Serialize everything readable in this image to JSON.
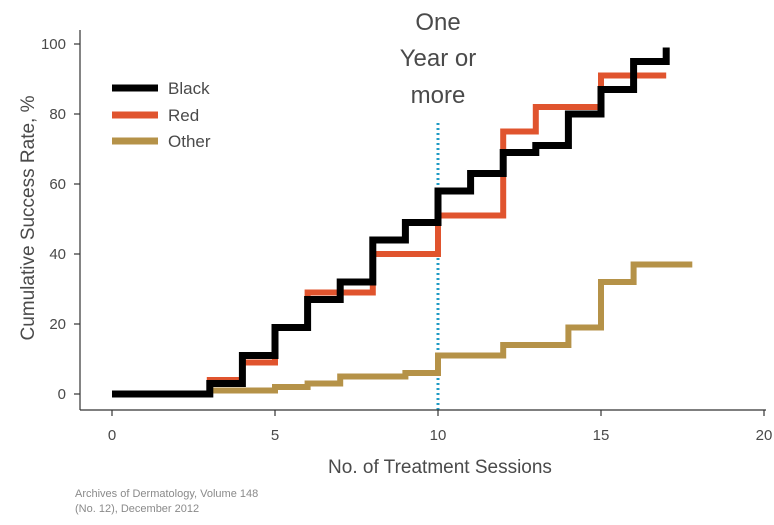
{
  "chart_data": {
    "type": "line",
    "step": true,
    "xlabel": "No. of Treatment Sessions",
    "ylabel": "Cumulative Success Rate, %",
    "xlim": [
      0,
      20
    ],
    "ylim": [
      0,
      100
    ],
    "xticks": [
      0,
      5,
      10,
      15,
      20
    ],
    "yticks": [
      0,
      20,
      40,
      60,
      80,
      100
    ],
    "grid": false,
    "legend_position": "top-left",
    "series": [
      {
        "name": "Black",
        "color": "#000000",
        "points": [
          [
            0,
            0
          ],
          [
            3,
            0
          ],
          [
            3,
            3
          ],
          [
            4,
            3
          ],
          [
            4,
            11
          ],
          [
            5,
            11
          ],
          [
            5,
            19
          ],
          [
            6,
            19
          ],
          [
            6,
            27
          ],
          [
            7,
            27
          ],
          [
            7,
            32
          ],
          [
            8,
            32
          ],
          [
            8,
            44
          ],
          [
            9,
            44
          ],
          [
            9,
            49
          ],
          [
            10,
            49
          ],
          [
            10,
            58
          ],
          [
            11,
            58
          ],
          [
            11,
            63
          ],
          [
            12,
            63
          ],
          [
            12,
            69
          ],
          [
            13,
            69
          ],
          [
            13,
            71
          ],
          [
            14,
            71
          ],
          [
            14,
            80
          ],
          [
            15,
            80
          ],
          [
            15,
            87
          ],
          [
            16,
            87
          ],
          [
            16,
            95
          ],
          [
            17,
            95
          ],
          [
            17,
            99
          ]
        ]
      },
      {
        "name": "Red",
        "color": "#e0542e",
        "points": [
          [
            0,
            0
          ],
          [
            3,
            0
          ],
          [
            3,
            4
          ],
          [
            4,
            4
          ],
          [
            4,
            9
          ],
          [
            5,
            9
          ],
          [
            5,
            19
          ],
          [
            6,
            19
          ],
          [
            6,
            29
          ],
          [
            7,
            29
          ],
          [
            7,
            29
          ],
          [
            8,
            29
          ],
          [
            8,
            40
          ],
          [
            9,
            40
          ],
          [
            9,
            40
          ],
          [
            10,
            40
          ],
          [
            10,
            51
          ],
          [
            11,
            51
          ],
          [
            11,
            51
          ],
          [
            12,
            51
          ],
          [
            12,
            75
          ],
          [
            13,
            75
          ],
          [
            13,
            82
          ],
          [
            14,
            82
          ],
          [
            14,
            82
          ],
          [
            15,
            82
          ],
          [
            15,
            91
          ],
          [
            16,
            91
          ],
          [
            16,
            91
          ],
          [
            17,
            91
          ]
        ]
      },
      {
        "name": "Other",
        "color": "#b59248",
        "points": [
          [
            0,
            0
          ],
          [
            3,
            0
          ],
          [
            3,
            1
          ],
          [
            5,
            1
          ],
          [
            5,
            2
          ],
          [
            6,
            2
          ],
          [
            6,
            3
          ],
          [
            7,
            3
          ],
          [
            7,
            5
          ],
          [
            9,
            5
          ],
          [
            9,
            6
          ],
          [
            10,
            6
          ],
          [
            10,
            11
          ],
          [
            12,
            11
          ],
          [
            12,
            14
          ],
          [
            14,
            14
          ],
          [
            14,
            19
          ],
          [
            15,
            19
          ],
          [
            15,
            32
          ],
          [
            16,
            32
          ],
          [
            16,
            37
          ],
          [
            17.8,
            37
          ]
        ]
      }
    ],
    "annotations": [
      {
        "lines": [
          "One",
          "Year or",
          "more"
        ],
        "x": 10,
        "marker": "vertical-dotted-line",
        "color": "#1f9bc4"
      }
    ]
  },
  "source": {
    "line1": "Archives of Dermatology, Volume 148",
    "line2": "(No. 12), December 2012"
  }
}
